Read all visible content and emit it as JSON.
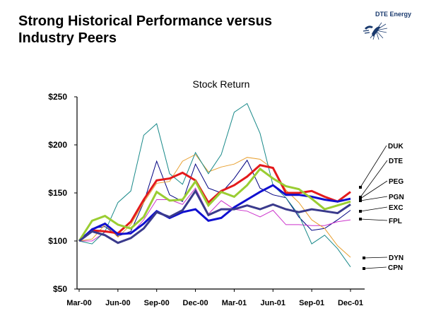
{
  "slide": {
    "title_line1": "Strong Historical Performance versus",
    "title_line2": "Industry Peers",
    "logo_text": "DTE Energy",
    "logo_icon": "dte-energy-logo-icon"
  },
  "chart_data": {
    "type": "line",
    "title": "Stock Return",
    "xlabel": "",
    "ylabel": "",
    "ylim": [
      50,
      250
    ],
    "y_ticks": [
      50,
      100,
      150,
      200,
      250
    ],
    "y_tick_labels": [
      "$50",
      "$100",
      "$150",
      "$200",
      "$250"
    ],
    "x": [
      "Mar-00",
      "Apr-00",
      "May-00",
      "Jun-00",
      "Jul-00",
      "Aug-00",
      "Sep-00",
      "Oct-00",
      "Nov-00",
      "Dec-00",
      "Jan-01",
      "Feb-01",
      "Mar-01",
      "Apr-01",
      "May-01",
      "Jun-01",
      "Jul-01",
      "Aug-01",
      "Sep-01",
      "Oct-01",
      "Nov-01",
      "Dec-01"
    ],
    "x_tick_labels": [
      "Mar-00",
      "Jun-00",
      "Sep-00",
      "Dec-00",
      "Mar-01",
      "Jun-01",
      "Sep-01",
      "Dec-01"
    ],
    "grid": false,
    "legend": "right (callout labels at line ends)",
    "series": [
      {
        "name": "DUK",
        "color": "#e31a1c",
        "width": "thick",
        "values": [
          100,
          111,
          110,
          108,
          120,
          143,
          163,
          165,
          171,
          163,
          140,
          152,
          158,
          167,
          179,
          176,
          150,
          150,
          152,
          146,
          141,
          151
        ]
      },
      {
        "name": "DTE",
        "color": "#1010d0",
        "width": "thick",
        "values": [
          100,
          112,
          118,
          107,
          108,
          118,
          131,
          124,
          130,
          133,
          121,
          124,
          135,
          143,
          151,
          158,
          148,
          148,
          146,
          143,
          141,
          144
        ]
      },
      {
        "name": "PEG",
        "color": "#9acd32",
        "width": "thick",
        "values": [
          100,
          121,
          126,
          117,
          113,
          125,
          151,
          142,
          143,
          162,
          137,
          151,
          146,
          158,
          175,
          165,
          157,
          154,
          144,
          133,
          137,
          141
        ]
      },
      {
        "name": "PGN",
        "color": "#3a3a8c",
        "width": "thick",
        "values": [
          100,
          110,
          106,
          98,
          103,
          113,
          130,
          125,
          132,
          152,
          127,
          133,
          133,
          137,
          133,
          138,
          133,
          130,
          133,
          131,
          129,
          138
        ]
      },
      {
        "name": "EXC",
        "color": "#000080",
        "width": "thin",
        "values": [
          100,
          113,
          115,
          105,
          110,
          140,
          183,
          148,
          141,
          180,
          155,
          150,
          165,
          184,
          155,
          148,
          145,
          125,
          111,
          113,
          122,
          132
        ]
      },
      {
        "name": "FPL",
        "color": "#cc33cc",
        "width": "thin",
        "values": [
          100,
          100,
          109,
          109,
          107,
          122,
          143,
          143,
          138,
          155,
          128,
          142,
          133,
          131,
          125,
          132,
          117,
          117,
          116,
          116,
          120,
          122
        ]
      },
      {
        "name": "DYN",
        "color": "#e8a030",
        "width": "thin",
        "values": [
          100,
          102,
          117,
          104,
          117,
          140,
          160,
          162,
          183,
          190,
          172,
          177,
          180,
          187,
          185,
          175,
          153,
          140,
          122,
          113,
          95,
          83
        ]
      },
      {
        "name": "CPN",
        "color": "#1a8a8a",
        "width": "thin",
        "values": [
          100,
          97,
          110,
          140,
          152,
          210,
          222,
          170,
          159,
          192,
          170,
          190,
          234,
          243,
          212,
          158,
          145,
          127,
          97,
          106,
          92,
          73
        ]
      }
    ]
  }
}
